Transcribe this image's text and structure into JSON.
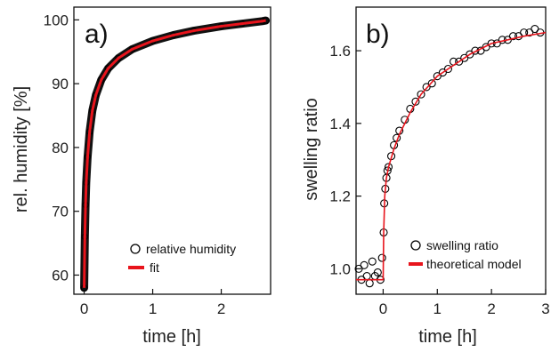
{
  "chart_data": [
    {
      "type": "scatter",
      "panel_label": "a)",
      "xlabel": "time [h]",
      "ylabel": "rel. humidity [%]",
      "xlim": [
        -0.15,
        2.72
      ],
      "ylim": [
        57,
        102
      ],
      "xticks": [
        0,
        1,
        2
      ],
      "xtick_labels": [
        "0",
        "1",
        "2"
      ],
      "yticks": [
        60,
        70,
        80,
        90,
        100
      ],
      "ytick_labels": [
        "60",
        "70",
        "80",
        "90",
        "100"
      ],
      "legend_position": "bottom-right",
      "grid": false,
      "series": [
        {
          "name": "relative humidity",
          "kind": "markers",
          "marker": "open-circle",
          "color": "#000000",
          "x": [
            0.0,
            0.01,
            0.02,
            0.03,
            0.05,
            0.08,
            0.12,
            0.17,
            0.25,
            0.35,
            0.5,
            0.7,
            1.0,
            1.3,
            1.6,
            2.0,
            2.3,
            2.6,
            2.65
          ],
          "y": [
            58.0,
            66.0,
            71.0,
            74.5,
            78.5,
            82.5,
            85.8,
            88.2,
            90.6,
            92.4,
            94.0,
            95.4,
            96.7,
            97.6,
            98.3,
            99.0,
            99.4,
            99.8,
            99.9
          ]
        },
        {
          "name": "fit",
          "kind": "line",
          "color": "#e8141c",
          "x": [
            0.0,
            0.01,
            0.02,
            0.03,
            0.05,
            0.08,
            0.12,
            0.17,
            0.25,
            0.35,
            0.5,
            0.7,
            1.0,
            1.3,
            1.6,
            2.0,
            2.3,
            2.6,
            2.65
          ],
          "y": [
            58.0,
            66.0,
            71.0,
            74.5,
            78.5,
            82.5,
            85.8,
            88.2,
            90.6,
            92.4,
            94.0,
            95.4,
            96.7,
            97.6,
            98.3,
            99.0,
            99.4,
            99.8,
            99.9
          ]
        }
      ]
    },
    {
      "type": "scatter",
      "panel_label": "b)",
      "xlabel": "time [h]",
      "ylabel": "swelling ratio",
      "xlim": [
        -0.5,
        3.0
      ],
      "ylim": [
        0.93,
        1.72
      ],
      "xticks": [
        0,
        1,
        2,
        3
      ],
      "xtick_labels": [
        "0",
        "1",
        "2",
        "3"
      ],
      "yticks": [
        1.0,
        1.2,
        1.4,
        1.6
      ],
      "ytick_labels": [
        "1.0",
        "1.2",
        "1.4",
        "1.6"
      ],
      "legend_position": "bottom-right",
      "grid": false,
      "series": [
        {
          "name": "swelling ratio",
          "kind": "markers",
          "marker": "open-circle",
          "color": "#000000",
          "x": [
            -0.45,
            -0.4,
            -0.35,
            -0.3,
            -0.25,
            -0.2,
            -0.15,
            -0.1,
            -0.05,
            -0.02,
            0.01,
            0.02,
            0.04,
            0.06,
            0.08,
            0.1,
            0.15,
            0.2,
            0.25,
            0.3,
            0.4,
            0.5,
            0.6,
            0.7,
            0.8,
            0.9,
            1.0,
            1.1,
            1.2,
            1.3,
            1.4,
            1.5,
            1.6,
            1.7,
            1.8,
            1.9,
            2.0,
            2.1,
            2.2,
            2.3,
            2.4,
            2.5,
            2.6,
            2.7,
            2.8,
            2.9
          ],
          "y": [
            1.0,
            0.97,
            1.01,
            0.98,
            0.96,
            1.02,
            0.98,
            0.99,
            0.97,
            1.03,
            1.1,
            1.18,
            1.22,
            1.25,
            1.27,
            1.28,
            1.31,
            1.34,
            1.36,
            1.38,
            1.41,
            1.44,
            1.46,
            1.48,
            1.5,
            1.51,
            1.53,
            1.54,
            1.55,
            1.57,
            1.57,
            1.58,
            1.59,
            1.6,
            1.6,
            1.61,
            1.62,
            1.62,
            1.63,
            1.63,
            1.64,
            1.64,
            1.65,
            1.65,
            1.66,
            1.65
          ]
        },
        {
          "name": "theoretical model",
          "kind": "line",
          "color": "#e8141c",
          "x": [
            -0.5,
            0.0,
            0.01,
            0.03,
            0.06,
            0.1,
            0.2,
            0.3,
            0.5,
            0.7,
            1.0,
            1.3,
            1.6,
            2.0,
            2.3,
            2.6,
            3.0
          ],
          "y": [
            0.97,
            0.97,
            1.1,
            1.2,
            1.25,
            1.28,
            1.33,
            1.37,
            1.43,
            1.48,
            1.53,
            1.56,
            1.59,
            1.62,
            1.63,
            1.64,
            1.65
          ]
        }
      ]
    }
  ]
}
